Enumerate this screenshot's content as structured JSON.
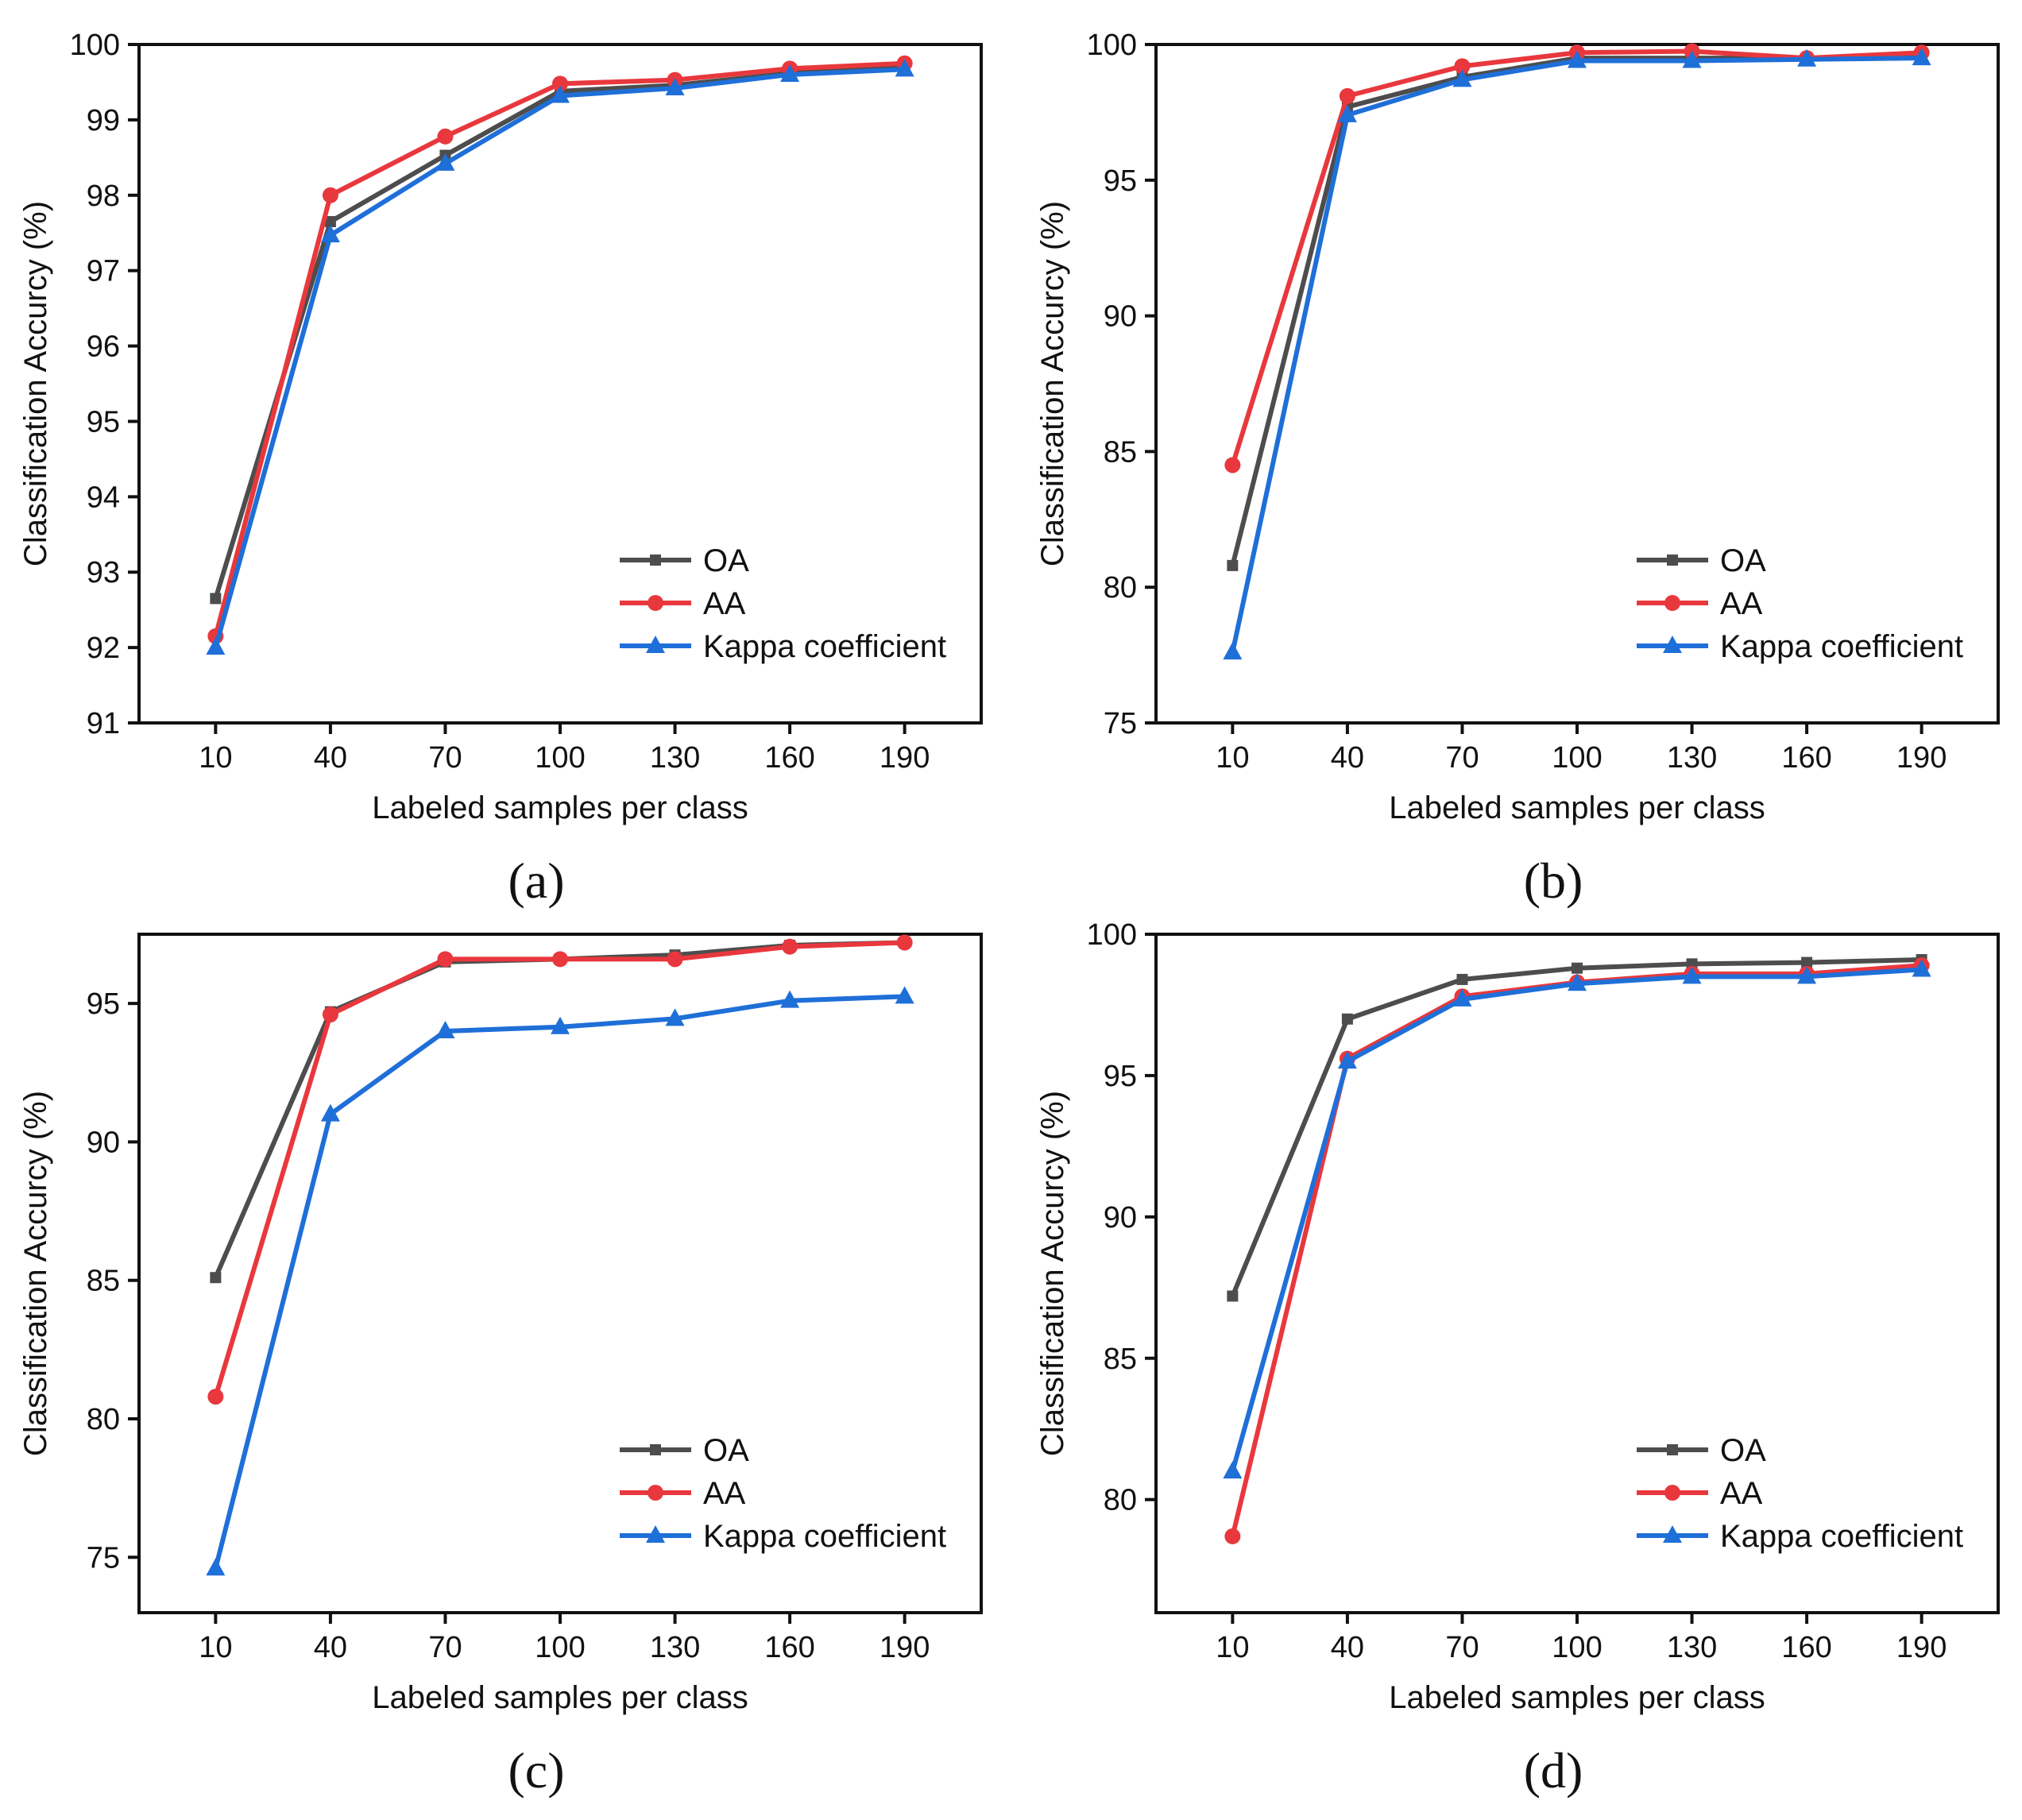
{
  "colors": {
    "OA": "#4d4d4d",
    "AA": "#e8383d",
    "Kappa": "#1f6fd8"
  },
  "chart_data": [
    {
      "type": "line",
      "panel_label": "(a)",
      "xlabel": "Labeled samples per class",
      "ylabel": "Classification Accurcy (%)",
      "x": [
        10,
        40,
        70,
        100,
        130,
        160,
        190
      ],
      "ylim": [
        91,
        100
      ],
      "yticks": [
        91,
        92,
        93,
        94,
        95,
        96,
        97,
        98,
        99,
        100
      ],
      "legend_position": "bottom-right",
      "series": [
        {
          "name": "OA",
          "color_key": "OA",
          "marker": "square",
          "values": [
            92.65,
            97.65,
            98.53,
            99.38,
            99.46,
            99.62,
            99.7
          ]
        },
        {
          "name": "AA",
          "color_key": "AA",
          "marker": "circle",
          "values": [
            92.15,
            98.0,
            98.78,
            99.48,
            99.53,
            99.68,
            99.75
          ]
        },
        {
          "name": "Kappa coefficient",
          "color_key": "Kappa",
          "marker": "triangle",
          "values": [
            92.0,
            97.47,
            98.42,
            99.32,
            99.42,
            99.6,
            99.67
          ]
        }
      ]
    },
    {
      "type": "line",
      "panel_label": "(b)",
      "xlabel": "Labeled samples per class",
      "ylabel": "Classification Accurcy (%)",
      "x": [
        10,
        40,
        70,
        100,
        130,
        160,
        190
      ],
      "ylim": [
        75,
        100
      ],
      "yticks": [
        75,
        80,
        85,
        90,
        95,
        100
      ],
      "legend_position": "bottom-right",
      "series": [
        {
          "name": "OA",
          "color_key": "OA",
          "marker": "square",
          "values": [
            80.8,
            97.7,
            98.8,
            99.5,
            99.5,
            99.5,
            99.6
          ]
        },
        {
          "name": "AA",
          "color_key": "AA",
          "marker": "circle",
          "values": [
            84.5,
            98.1,
            99.2,
            99.7,
            99.75,
            99.5,
            99.7
          ]
        },
        {
          "name": "Kappa coefficient",
          "color_key": "Kappa",
          "marker": "triangle",
          "values": [
            77.6,
            97.4,
            98.7,
            99.4,
            99.4,
            99.45,
            99.5
          ]
        }
      ]
    },
    {
      "type": "line",
      "panel_label": "(c)",
      "xlabel": "Labeled samples per class",
      "ylabel": "Classification Accurcy (%)",
      "x": [
        10,
        40,
        70,
        100,
        130,
        160,
        190
      ],
      "ylim": [
        73,
        97.5
      ],
      "yticks": [
        75,
        80,
        85,
        90,
        95
      ],
      "legend_position": "bottom-right",
      "series": [
        {
          "name": "OA",
          "color_key": "OA",
          "marker": "square",
          "values": [
            85.1,
            94.7,
            96.5,
            96.6,
            96.75,
            97.1,
            97.2
          ]
        },
        {
          "name": "AA",
          "color_key": "AA",
          "marker": "circle",
          "values": [
            80.8,
            94.6,
            96.6,
            96.6,
            96.6,
            97.05,
            97.2
          ]
        },
        {
          "name": "Kappa coefficient",
          "color_key": "Kappa",
          "marker": "triangle",
          "values": [
            74.6,
            91.0,
            94.0,
            94.15,
            94.45,
            95.1,
            95.25
          ]
        }
      ]
    },
    {
      "type": "line",
      "panel_label": "(d)",
      "xlabel": "Labeled samples per class",
      "ylabel": "Classification Accurcy (%)",
      "x": [
        10,
        40,
        70,
        100,
        130,
        160,
        190
      ],
      "ylim": [
        76,
        100
      ],
      "yticks": [
        80,
        85,
        90,
        95,
        100
      ],
      "legend_position": "bottom-right",
      "series": [
        {
          "name": "OA",
          "color_key": "OA",
          "marker": "square",
          "values": [
            87.2,
            97.0,
            98.4,
            98.8,
            98.95,
            99.0,
            99.1
          ]
        },
        {
          "name": "AA",
          "color_key": "AA",
          "marker": "circle",
          "values": [
            78.7,
            95.6,
            97.8,
            98.3,
            98.6,
            98.6,
            98.9
          ]
        },
        {
          "name": "Kappa coefficient",
          "color_key": "Kappa",
          "marker": "triangle",
          "values": [
            81.0,
            95.5,
            97.7,
            98.25,
            98.5,
            98.5,
            98.75
          ]
        }
      ]
    }
  ]
}
